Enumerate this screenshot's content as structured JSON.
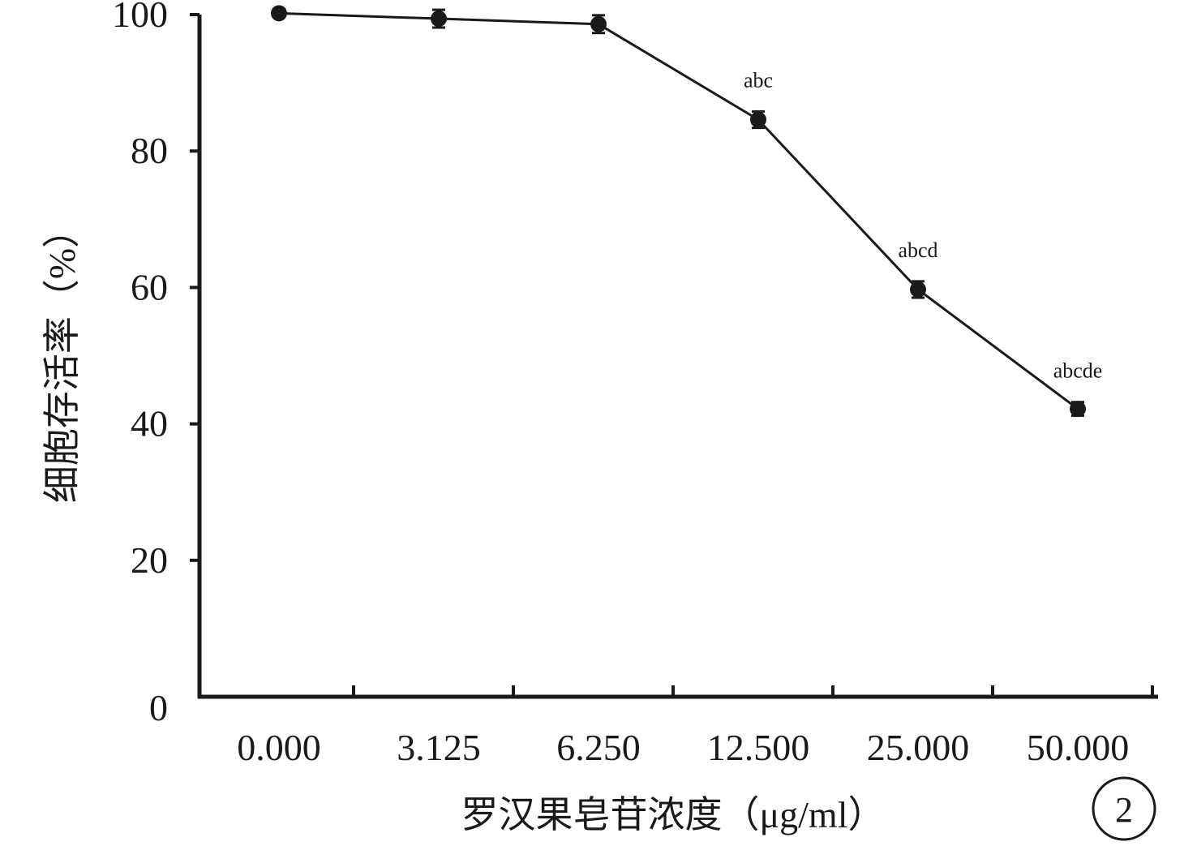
{
  "chart_data": {
    "type": "line",
    "title": "",
    "xlabel": "罗汉果皂苷浓度（μg/ml）",
    "ylabel": "细胞存活率（%）",
    "categories": [
      "0.000",
      "3.125",
      "6.250",
      "12.500",
      "25.000",
      "50.000"
    ],
    "series": [
      {
        "values": [
          100.2,
          99.4,
          98.6,
          84.6,
          59.7,
          42.2
        ],
        "errors": [
          0,
          1.3,
          1.3,
          1.2,
          1.2,
          1.0
        ],
        "annotations": [
          "",
          "",
          "",
          "abc",
          "abcd",
          "abcde"
        ]
      }
    ],
    "ylim": [
      0,
      100
    ],
    "yticks": [
      0,
      20,
      40,
      60,
      80,
      100
    ],
    "grid": false,
    "panel_label": "2",
    "colors": {
      "line": "#1a1a1a",
      "axis": "#1a1a1a"
    }
  }
}
